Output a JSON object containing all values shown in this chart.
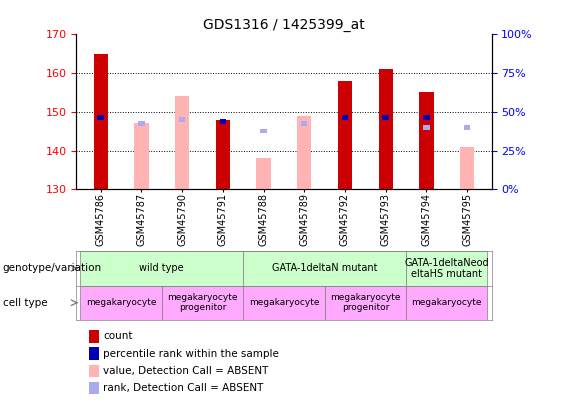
{
  "title": "GDS1316 / 1425399_at",
  "samples": [
    "GSM45786",
    "GSM45787",
    "GSM45790",
    "GSM45791",
    "GSM45788",
    "GSM45789",
    "GSM45792",
    "GSM45793",
    "GSM45794",
    "GSM45795"
  ],
  "count_values": [
    165,
    null,
    null,
    148,
    null,
    null,
    158,
    161,
    155,
    null
  ],
  "absent_value_bars": [
    null,
    147,
    154,
    null,
    138,
    149,
    null,
    null,
    null,
    141
  ],
  "percentile_rank_y": [
    148.5,
    null,
    null,
    147.5,
    null,
    null,
    148.5,
    148.5,
    148.5,
    null
  ],
  "absent_rank_y": [
    null,
    147,
    148,
    null,
    145,
    147,
    null,
    null,
    146,
    146
  ],
  "ylim": [
    130,
    170
  ],
  "y2lim": [
    0,
    100
  ],
  "yticks": [
    130,
    140,
    150,
    160,
    170
  ],
  "y2ticks": [
    0,
    25,
    50,
    75,
    100
  ],
  "y2ticklabels": [
    "0%",
    "25%",
    "50%",
    "75%",
    "100%"
  ],
  "bar_width": 0.35,
  "count_color": "#cc0000",
  "absent_value_color": "#ffb3b3",
  "percentile_color": "#0000bb",
  "absent_rank_color": "#aaaaee",
  "legend_items": [
    {
      "label": "count",
      "color": "#cc0000"
    },
    {
      "label": "percentile rank within the sample",
      "color": "#0000bb"
    },
    {
      "label": "value, Detection Call = ABSENT",
      "color": "#ffb3b3"
    },
    {
      "label": "rank, Detection Call = ABSENT",
      "color": "#aaaaee"
    }
  ]
}
